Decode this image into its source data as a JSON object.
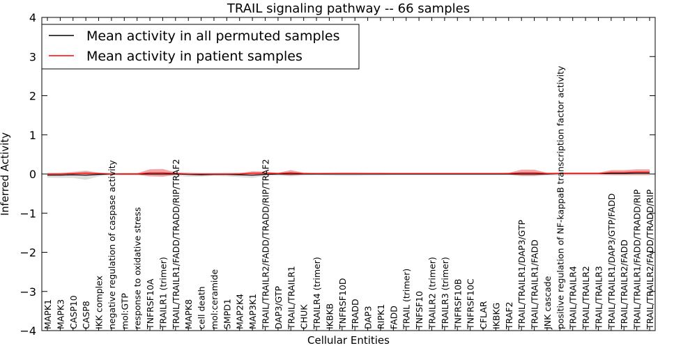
{
  "chart_data": {
    "type": "line",
    "title": "TRAIL signaling pathway -- 66 samples",
    "xlabel": "Cellular Entities",
    "ylabel": "Inferred Activity",
    "ylim": [
      -4,
      4
    ],
    "yticks": [
      -4,
      -3,
      -2,
      -1,
      0,
      1,
      2,
      3,
      4
    ],
    "ytick_labels": [
      "−4",
      "−3",
      "−2",
      "−1",
      "0",
      "1",
      "2",
      "3",
      "4"
    ],
    "legend_position": "top-left",
    "categories": [
      "MAPK1",
      "MAPK3",
      "CASP10",
      "CASP8",
      "IKK complex",
      "negative regulation of caspase activity",
      "mol:GTP",
      "response to oxidative stress",
      "TNFRSF10A",
      "TRAILR1 (trimer)",
      "TRAIL/TRAILR1/FADD/TRADD/RIP/TRAF2",
      "MAPK8",
      "cell death",
      "mol:ceramide",
      "SMPD1",
      "MAP2K4",
      "MAP3K1",
      "TRAIL/TRAILR2/FADD/TRADD/RIP/TRAF2",
      "DAP3/GTP",
      "TRAIL/TRAILR1",
      "CHUK",
      "TRAILR4 (trimer)",
      "IKBKB",
      "TNFRSF10D",
      "TRADD",
      "DAP3",
      "RIPK1",
      "FADD",
      "TRAIL (trimer)",
      "TNFSF10",
      "TRAILR2 (trimer)",
      "TRAILR3 (trimer)",
      "TNFRSF10B",
      "TNFRSF10C",
      "CFLAR",
      "IKBKG",
      "TRAF2",
      "TRAIL/TRAILR1/DAP3/GTP",
      "TRAIL/TRAILR1/FADD",
      "JNK cascade",
      "positive regulation of NF-kappaB transcription factor activity",
      "TRAIL/TRAILR4",
      "TRAIL/TRAILR2",
      "TRAIL/TRAILR3",
      "TRAIL/TRAILR1/DAP3/GTP/FADD",
      "TRAIL/TRAILR2/FADD",
      "TRAIL/TRAILR1/FADD/TRADD/RIP",
      "TRAIL/TRAILR2/FADD/TRADD/RIP"
    ],
    "series": [
      {
        "name": "Mean activity in all permuted samples",
        "color": "#000000",
        "values": [
          -0.03,
          -0.03,
          -0.02,
          -0.03,
          -0.01,
          0,
          0,
          0,
          0,
          0,
          0,
          -0.01,
          -0.02,
          -0.01,
          -0.01,
          -0.02,
          -0.03,
          -0.01,
          0,
          0,
          0,
          0,
          0,
          0,
          0,
          0,
          0,
          0,
          0,
          0,
          0,
          0,
          0,
          0,
          0,
          0,
          0,
          0,
          0,
          0,
          0.01,
          0.01,
          0.01,
          0.01,
          0.01,
          0.01,
          0.02,
          0.02
        ],
        "band": [
          0.06,
          0.07,
          0.08,
          0.12,
          0.05,
          0.03,
          0.03,
          0.03,
          0.03,
          0.05,
          0.05,
          0.06,
          0.05,
          0.04,
          0.05,
          0.06,
          0.07,
          0.04,
          0.04,
          0.06,
          0.04,
          0.03,
          0.04,
          0.05,
          0.05,
          0.04,
          0.04,
          0.03,
          0.03,
          0.03,
          0.03,
          0.03,
          0.03,
          0.03,
          0.03,
          0.03,
          0.03,
          0.05,
          0.05,
          0.04,
          0.04,
          0.04,
          0.04,
          0.04,
          0.05,
          0.05,
          0.06,
          0.06
        ]
      },
      {
        "name": "Mean activity in patient samples",
        "color": "#ff0000",
        "values": [
          0,
          0,
          0.01,
          0.02,
          0.01,
          0,
          0,
          0,
          0.03,
          0.03,
          0.01,
          0,
          0,
          0,
          0,
          0,
          0.02,
          0.02,
          0.01,
          0.03,
          0.01,
          0.01,
          0.01,
          0.01,
          0.01,
          0.01,
          0.01,
          0.01,
          0.01,
          0.01,
          0.01,
          0.01,
          0.01,
          0.01,
          0.01,
          0.01,
          0.01,
          0.03,
          0.03,
          0.01,
          0.01,
          0.01,
          0.01,
          0.01,
          0.04,
          0.04,
          0.05,
          0.05
        ],
        "band": [
          0.02,
          0.02,
          0.03,
          0.05,
          0.02,
          0.01,
          0.02,
          0.02,
          0.09,
          0.1,
          0.03,
          0.01,
          0.01,
          0.01,
          0.01,
          0.02,
          0.05,
          0.04,
          0.02,
          0.07,
          0.02,
          0.01,
          0.01,
          0.01,
          0.01,
          0.01,
          0.01,
          0.01,
          0.01,
          0.01,
          0.01,
          0.01,
          0.01,
          0.01,
          0.01,
          0.01,
          0.02,
          0.08,
          0.08,
          0.02,
          0.02,
          0.02,
          0.02,
          0.02,
          0.06,
          0.06,
          0.07,
          0.07
        ],
        "band_color": "#f08080"
      }
    ]
  }
}
